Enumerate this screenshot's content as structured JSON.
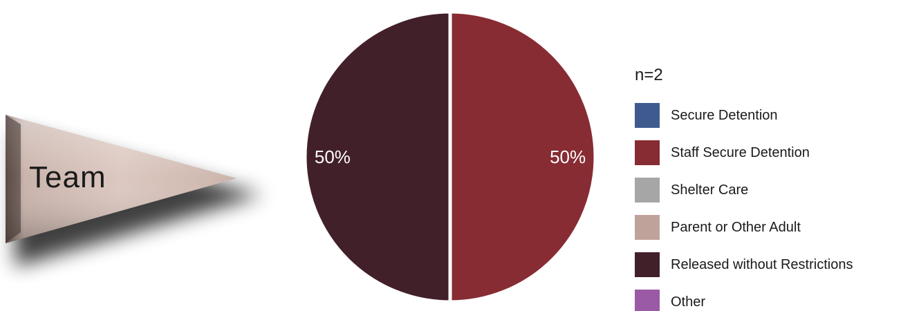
{
  "banner": {
    "label": "Team"
  },
  "legend": {
    "title": "n=2"
  },
  "chart_data": {
    "type": "pie",
    "categories": [
      "Secure Detention",
      "Staff Secure Detention",
      "Shelter Care",
      "Parent or Other Adult",
      "Released without Restrictions",
      "Other"
    ],
    "values": [
      0,
      50,
      0,
      0,
      50,
      0
    ],
    "colors": [
      "#3f5a8f",
      "#872c33",
      "#a6a6a6",
      "#bfa39b",
      "#422029",
      "#9a5aa6"
    ],
    "data_labels": [
      "",
      "50%",
      "",
      "",
      "50%",
      ""
    ],
    "unit": "%",
    "start_angle_deg": 0,
    "direction": "clockwise",
    "legend_placement": "right"
  }
}
